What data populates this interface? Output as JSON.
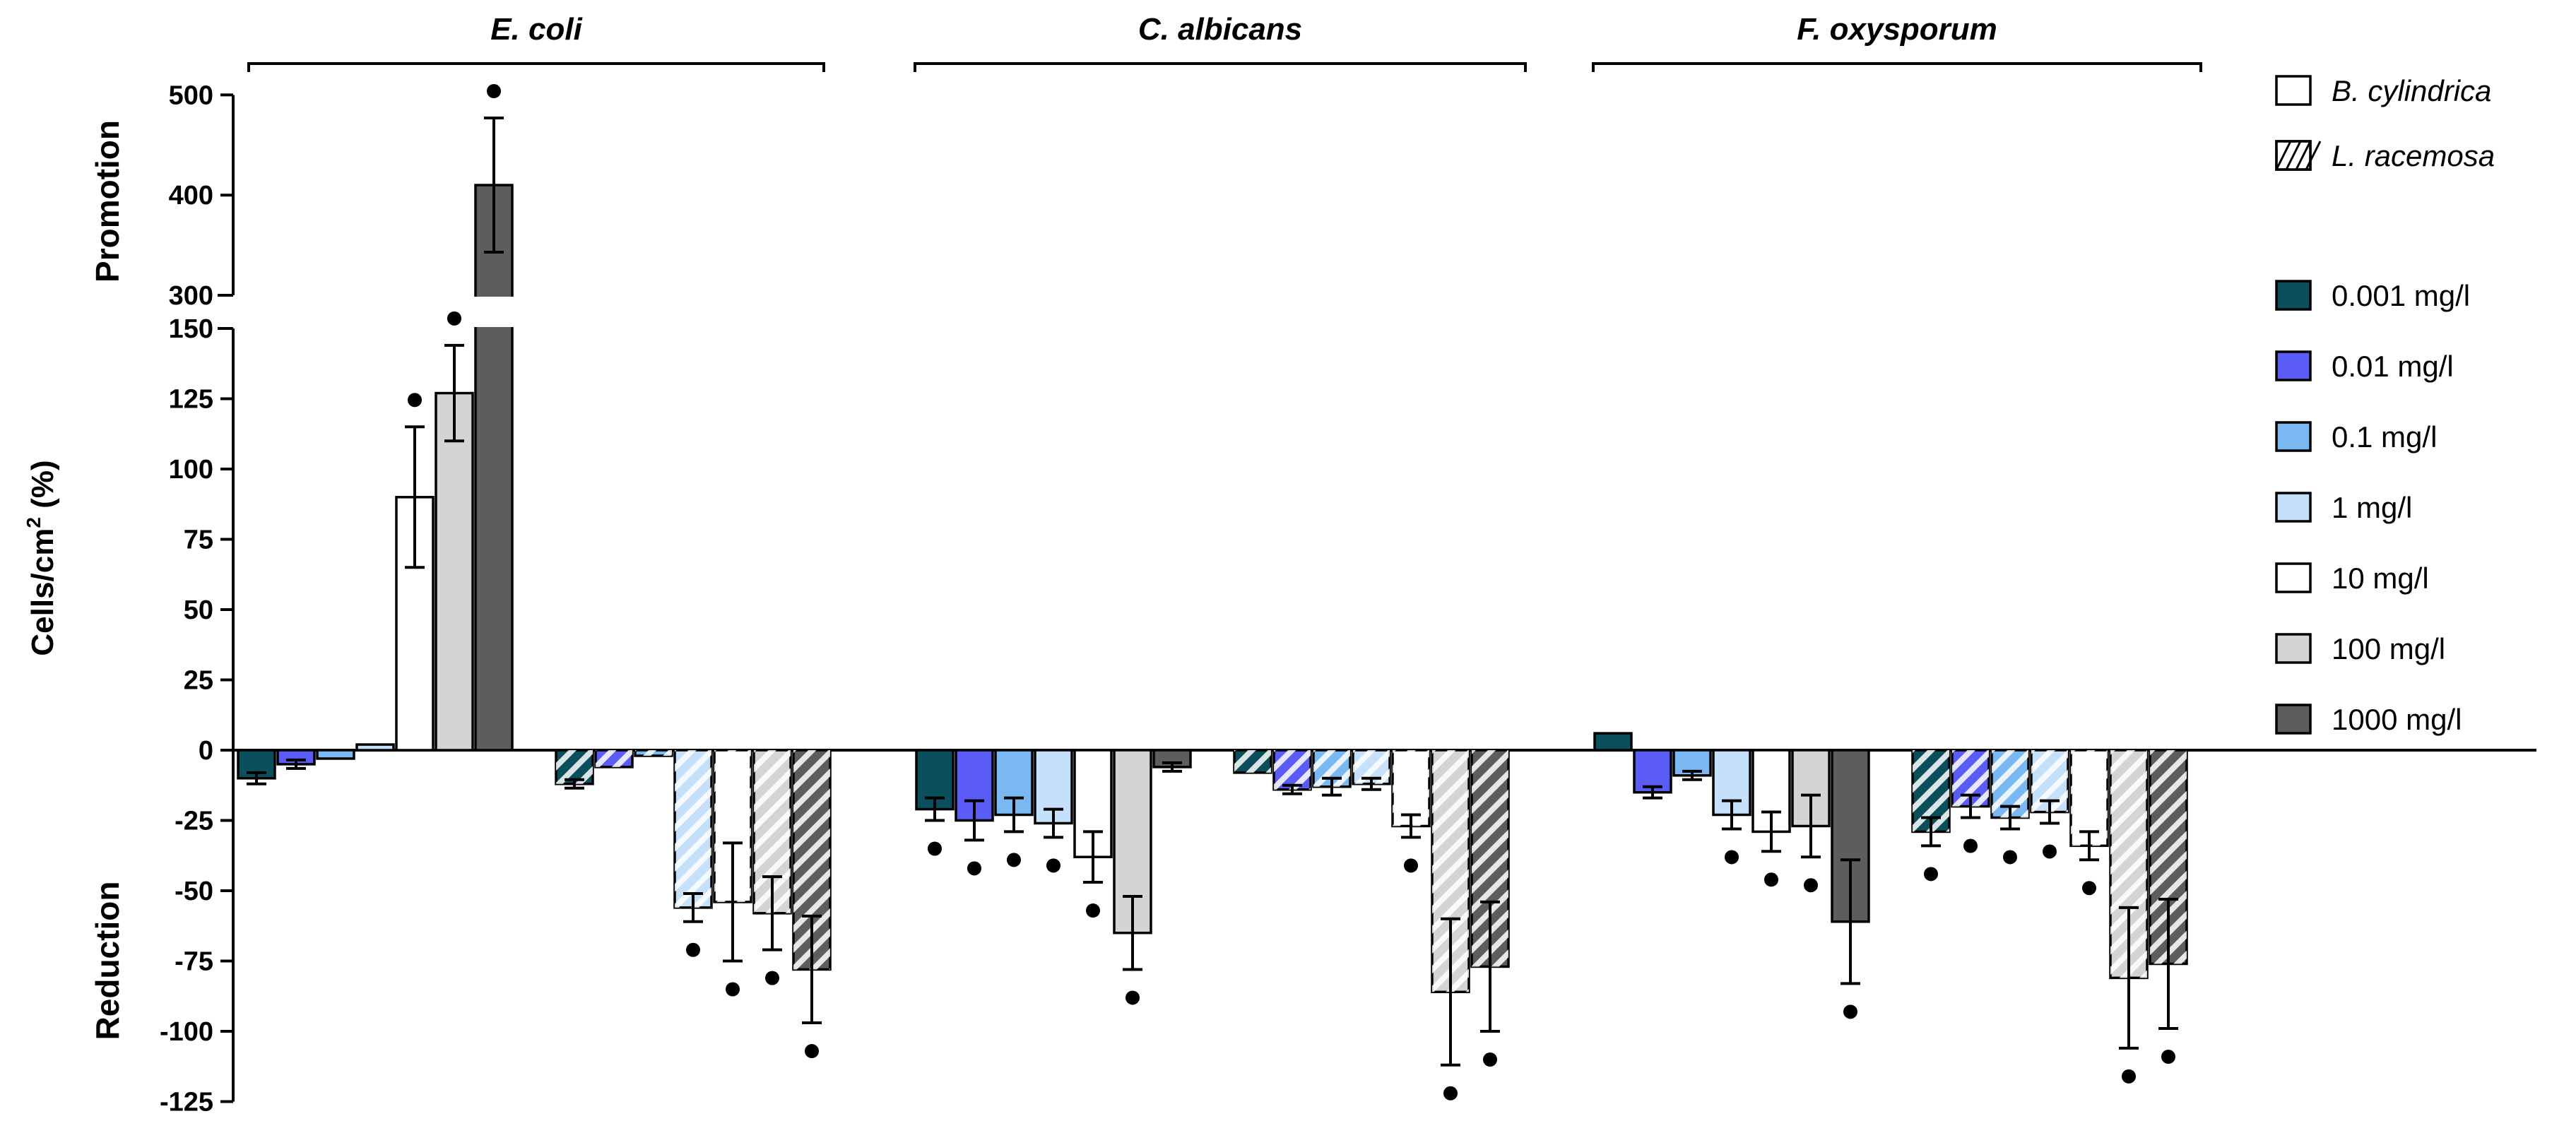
{
  "chart_data": {
    "type": "bar",
    "ylabel": "Cells/cm² (%)",
    "ylabel_main": "Cells/cm",
    "ylabel_sup": "2",
    "ylabel_tail": " (%)",
    "promotion_label": "Promotion",
    "reduction_label": "Reduction",
    "upper_axis": {
      "range": [
        300,
        500
      ],
      "ticks": [
        "300",
        "400",
        "500"
      ]
    },
    "lower_axis": {
      "range": [
        -125,
        150
      ],
      "ticks": [
        "150",
        "125",
        "100",
        "75",
        "50",
        "25",
        "0",
        "-25",
        "-50",
        "-75",
        "-100",
        "-125"
      ]
    },
    "concentrations": [
      "0.001 mg/l",
      "0.01 mg/l",
      "0.1 mg/l",
      "1 mg/l",
      "10 mg/l",
      "100 mg/l",
      "1000 mg/l"
    ],
    "concentration_colors": [
      "#0b4f5c",
      "#5b5bf5",
      "#7ab8f2",
      "#c4e0fb",
      "#ffffff",
      "#d4d4d4",
      "#5d5d5d"
    ],
    "extracts": [
      {
        "name": "B. cylindrica",
        "pattern": "solid"
      },
      {
        "name": "L. racemosa",
        "pattern": "hatched"
      }
    ],
    "groups": [
      {
        "organism": "E. coli",
        "series": [
          {
            "extract": "B. cylindrica",
            "values": [
              -10,
              -5,
              -3,
              2,
              90,
              127,
              410
            ],
            "errors": [
              2,
              1.5,
              1,
              1,
              25,
              17,
              67
            ],
            "significant": [
              false,
              false,
              false,
              false,
              true,
              true,
              true
            ]
          },
          {
            "extract": "L. racemosa",
            "values": [
              -12,
              -6,
              -2,
              -56,
              -54,
              -58,
              -78
            ],
            "errors": [
              1.5,
              1,
              1,
              5,
              21,
              13,
              19
            ],
            "significant": [
              false,
              false,
              false,
              true,
              true,
              true,
              true
            ]
          }
        ]
      },
      {
        "organism": "C. albicans",
        "series": [
          {
            "extract": "B. cylindrica",
            "values": [
              -21,
              -25,
              -23,
              -26,
              -38,
              -65,
              -6
            ],
            "errors": [
              4,
              7,
              6,
              5,
              9,
              13,
              1.5
            ],
            "significant": [
              true,
              true,
              true,
              true,
              true,
              true,
              false
            ]
          },
          {
            "extract": "L. racemosa",
            "values": [
              -8,
              -14,
              -13,
              -12,
              -27,
              -86,
              -77
            ],
            "errors": [
              1,
              1.5,
              3,
              2,
              4,
              26,
              23
            ],
            "significant": [
              false,
              false,
              false,
              false,
              true,
              true,
              true
            ]
          }
        ]
      },
      {
        "organism": "F. oxysporum",
        "series": [
          {
            "extract": "B. cylindrica",
            "values": [
              6,
              -15,
              -9,
              -23,
              -29,
              -27,
              -61
            ],
            "errors": [
              1,
              2,
              1.5,
              5,
              7,
              11,
              22
            ],
            "significant": [
              false,
              false,
              false,
              true,
              true,
              true,
              true
            ]
          },
          {
            "extract": "L. racemosa",
            "values": [
              -29,
              -20,
              -24,
              -22,
              -34,
              -81,
              -76
            ],
            "errors": [
              5,
              4,
              4,
              4,
              5,
              25,
              23
            ],
            "significant": [
              true,
              true,
              true,
              true,
              true,
              true,
              true
            ]
          }
        ]
      }
    ]
  }
}
